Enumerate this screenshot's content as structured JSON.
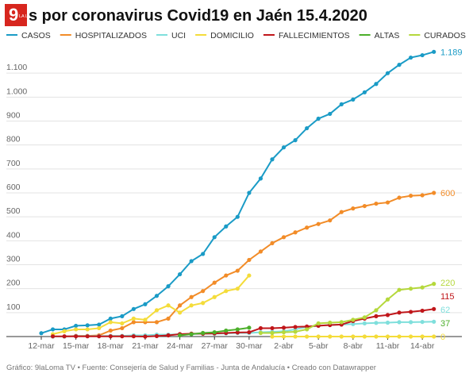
{
  "logo": {
    "number": "9",
    "text": "LA LOMA"
  },
  "chart_data": {
    "type": "line",
    "title": "s por coronavirus Covid19 en Jaén 15.4.2020",
    "footer": "Gráfico: 9laLoma TV • Fuente: Consejería de Salud y Familias - Junta de Andalucía • Creado con Datawrapper",
    "categories": [
      "12-mar",
      null,
      null,
      "15-mar",
      null,
      null,
      "18-mar",
      null,
      null,
      "21-mar",
      null,
      null,
      "24-mar",
      null,
      null,
      "27-mar",
      null,
      null,
      "30-mar",
      null,
      null,
      "2-abr",
      null,
      null,
      "5-abr",
      null,
      null,
      "8-abr",
      null,
      null,
      "11-abr",
      null,
      null,
      "14-abr",
      null
    ],
    "ylim": [
      0,
      1200
    ],
    "yticks": [
      100,
      200,
      300,
      400,
      500,
      600,
      700,
      800,
      900,
      {
        "value": 1000,
        "label": "1.000"
      },
      {
        "value": 1100,
        "label": "1.100"
      }
    ],
    "grid": true,
    "legend": "top",
    "series": [
      {
        "name": "CASOS",
        "color": "#1a9bc6",
        "values": [
          14,
          30,
          30,
          45,
          47,
          50,
          75,
          85,
          115,
          135,
          170,
          210,
          260,
          315,
          345,
          415,
          460,
          500,
          600,
          660,
          740,
          790,
          820,
          870,
          910,
          930,
          970,
          990,
          1020,
          1055,
          1100,
          1135,
          1165,
          1175,
          1189
        ],
        "value_labels": [
          null,
          null,
          null,
          null,
          null,
          null,
          null,
          null,
          null,
          null,
          null,
          null,
          null,
          null,
          null,
          null,
          null,
          null,
          null,
          null,
          null,
          null,
          null,
          null,
          null,
          null,
          null,
          null,
          null,
          null,
          null,
          null,
          null,
          null,
          "1.189"
        ]
      },
      {
        "name": "HOSPITALIZADOS",
        "color": "#f28c28",
        "values": [
          null,
          0,
          0,
          3,
          3,
          5,
          25,
          35,
          60,
          60,
          60,
          75,
          130,
          165,
          190,
          225,
          255,
          275,
          320,
          355,
          390,
          415,
          435,
          455,
          470,
          485,
          520,
          535,
          545,
          555,
          560,
          580,
          588,
          590,
          600
        ]
      },
      {
        "name": "UCI",
        "color": "#7fdfdc",
        "values": [
          null,
          0,
          0,
          2,
          2,
          2,
          3,
          3,
          5,
          5,
          8,
          8,
          10,
          10,
          12,
          12,
          13,
          15,
          15,
          18,
          20,
          22,
          30,
          40,
          45,
          48,
          50,
          52,
          55,
          57,
          58,
          60,
          60,
          61,
          62
        ]
      },
      {
        "name": "DOMICILIO",
        "color": "#f4dc3a",
        "values": [
          null,
          10,
          22,
          30,
          30,
          35,
          60,
          55,
          75,
          70,
          110,
          130,
          100,
          130,
          140,
          165,
          190,
          200,
          255,
          null,
          0,
          0,
          0,
          0,
          0,
          0,
          0,
          0,
          0,
          0,
          0,
          0,
          0,
          0,
          0
        ]
      },
      {
        "name": "FALLECIMIENTOS",
        "color": "#c0161a",
        "values": [
          null,
          1,
          1,
          1,
          1,
          1,
          1,
          1,
          1,
          0,
          2,
          5,
          10,
          12,
          12,
          13,
          15,
          17,
          18,
          35,
          35,
          37,
          40,
          42,
          45,
          48,
          50,
          65,
          75,
          85,
          90,
          100,
          103,
          108,
          115
        ]
      },
      {
        "name": "ALTAS",
        "color": "#4caf2a",
        "values": [
          null,
          null,
          null,
          null,
          null,
          null,
          null,
          null,
          null,
          null,
          null,
          null,
          5,
          10,
          15,
          18,
          25,
          30,
          37,
          null,
          null,
          null,
          null,
          null,
          null,
          null,
          null,
          null,
          null,
          null,
          null,
          null,
          null,
          null,
          null
        ]
      },
      {
        "name": "CURADOS",
        "color": "#b5d83c",
        "values": [
          null,
          null,
          null,
          null,
          null,
          null,
          null,
          null,
          null,
          null,
          null,
          null,
          null,
          null,
          null,
          null,
          null,
          null,
          null,
          15,
          15,
          18,
          20,
          30,
          55,
          58,
          60,
          70,
          80,
          110,
          155,
          195,
          200,
          205,
          220
        ]
      }
    ]
  }
}
